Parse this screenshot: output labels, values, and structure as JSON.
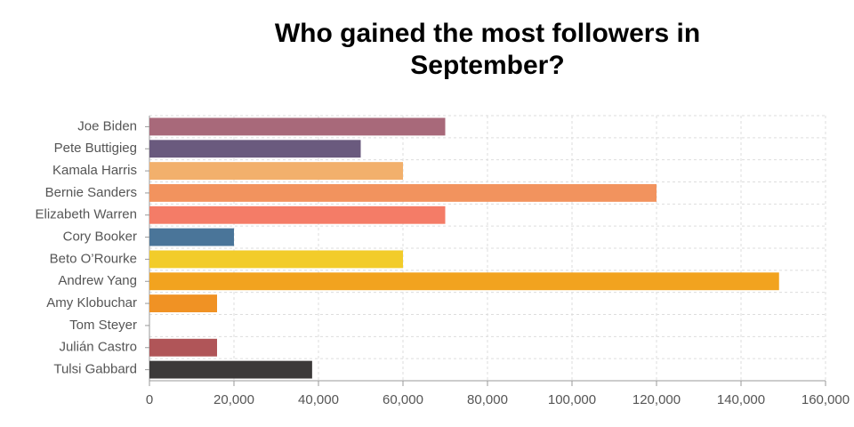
{
  "chart_data": {
    "type": "bar",
    "orientation": "horizontal",
    "title": "Who gained the most followers in September?",
    "categories": [
      "Joe Biden",
      "Pete Buttigieg",
      "Kamala Harris",
      "Bernie Sanders",
      "Elizabeth Warren",
      "Cory Booker",
      "Beto O’Rourke",
      "Andrew Yang",
      "Amy Klobuchar",
      "Tom Steyer",
      "Julián Castro",
      "Tulsi Gabbard"
    ],
    "values": [
      70000,
      50000,
      60000,
      120000,
      70000,
      20000,
      60000,
      149000,
      16000,
      0,
      16000,
      38500
    ],
    "colors": [
      "#a8697a",
      "#6a5a7e",
      "#f2b06c",
      "#f2935e",
      "#f47c67",
      "#4a7599",
      "#f2cc2a",
      "#f2a31f",
      "#f09224",
      "#cccccc",
      "#b05558",
      "#3c3a3a"
    ],
    "xlim": [
      0,
      160000
    ],
    "xticks": [
      0,
      {
        "value": 20000,
        "label": "20,000"
      },
      {
        "value": 40000,
        "label": "40,000"
      },
      {
        "value": 60000,
        "label": "60,000"
      },
      {
        "value": 80000,
        "label": "80,000"
      },
      {
        "value": 100000,
        "label": "100,000"
      },
      {
        "value": 120000,
        "label": "120,000"
      },
      {
        "value": 140000,
        "label": "140,000"
      },
      {
        "value": 160000,
        "label": "160,000"
      }
    ],
    "grid": true
  }
}
